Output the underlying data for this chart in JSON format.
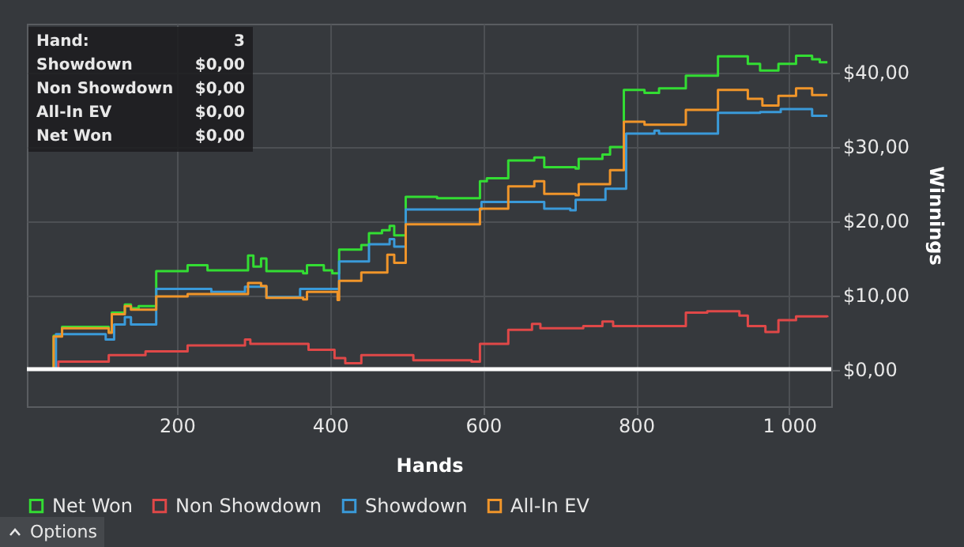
{
  "chart_data": {
    "type": "step",
    "xlabel": "Hands",
    "ylabel": "Winnings",
    "xlim": [
      4,
      1055
    ],
    "ylim": [
      -5,
      46.5
    ],
    "xticks": [
      200,
      400,
      600,
      800,
      {
        "value": 1000,
        "label": "1 000"
      }
    ],
    "yticks": [
      {
        "value": 0,
        "label": "$0,00"
      },
      {
        "value": 10,
        "label": "$10,00"
      },
      {
        "value": 20,
        "label": "$20,00"
      },
      {
        "value": 30,
        "label": "$30,00"
      },
      {
        "value": 40,
        "label": "$40,00"
      }
    ],
    "grid": true,
    "legend": "bottom",
    "line_style": "solid",
    "marker": "none",
    "ref_lines": [
      {
        "axis": "y",
        "value": 0,
        "color": "#ffffff"
      }
    ],
    "annotations": [
      "Hand:",
      "3",
      "Showdown",
      "$0,00",
      "Non Showdown",
      "$0,00",
      "All-In EV",
      "$0,00",
      "Net Won",
      "$0,00",
      "Options"
    ],
    "series": [
      {
        "name": "Net Won",
        "color": "#33dd33",
        "x": [
          10,
          39,
          50,
          111,
          115,
          132,
          140,
          150,
          173,
          214,
          240,
          293,
          300,
          310,
          317,
          365,
          370,
          392,
          403,
          412,
          441,
          451,
          468,
          478,
          484,
          499,
          540,
          596,
          605,
          633,
          667,
          680,
          721,
          725,
          756,
          766,
          784,
          811,
          830,
          865,
          907,
          946,
          962,
          986,
          1009,
          1030,
          1040,
          1050
        ],
        "values": [
          0,
          4.5,
          5.7,
          5.0,
          7.6,
          8.7,
          8.2,
          8.5,
          13.2,
          14.0,
          13.3,
          15.3,
          13.8,
          14.9,
          13.2,
          12.9,
          14.0,
          13.3,
          12.9,
          16.1,
          16.7,
          18.3,
          18.7,
          19.3,
          18.0,
          23.2,
          23.0,
          25.3,
          25.7,
          28.1,
          28.5,
          27.2,
          27.0,
          28.3,
          28.9,
          29.9,
          37.6,
          37.2,
          37.8,
          39.5,
          42.1,
          41.1,
          40.2,
          41.1,
          42.2,
          41.7,
          41.3,
          41.3
        ]
      },
      {
        "name": "Non Showdown",
        "color": "#e04848",
        "x": [
          10,
          45,
          111,
          159,
          214,
          289,
          296,
          372,
          406,
          420,
          441,
          509,
          585,
          596,
          633,
          664,
          675,
          731,
          756,
          770,
          852,
          865,
          893,
          935,
          946,
          969,
          986,
          1009,
          1050
        ],
        "values": [
          0,
          1.0,
          1.9,
          2.4,
          3.2,
          4.0,
          3.4,
          2.6,
          1.5,
          0.8,
          1.9,
          1.2,
          1.0,
          3.4,
          5.3,
          6.1,
          5.5,
          5.8,
          6.4,
          5.8,
          5.8,
          7.6,
          7.8,
          7.2,
          5.8,
          5.0,
          6.6,
          7.1,
          7.0
        ]
      },
      {
        "name": "Showdown",
        "color": "#3a9ad9",
        "x": [
          10,
          42,
          107,
          118,
          132,
          140,
          173,
          245,
          289,
          317,
          361,
          412,
          451,
          478,
          484,
          499,
          598,
          680,
          714,
          721,
          725,
          760,
          787,
          824,
          830,
          907,
          962,
          989,
          1030,
          1050
        ],
        "values": [
          0,
          4.7,
          4.0,
          6.0,
          7.0,
          6.0,
          10.8,
          10.4,
          11.1,
          9.7,
          10.8,
          14.5,
          16.8,
          17.5,
          16.5,
          21.5,
          22.5,
          21.6,
          21.4,
          22.8,
          22.8,
          24.3,
          31.7,
          32.1,
          31.7,
          34.5,
          34.6,
          35.0,
          34.1,
          34.1
        ]
      },
      {
        "name": "All-In EV",
        "color": "#f0952a",
        "x": [
          10,
          39,
          50,
          111,
          115,
          132,
          140,
          173,
          214,
          293,
          310,
          317,
          365,
          370,
          410,
          412,
          441,
          475,
          484,
          499,
          596,
          633,
          667,
          680,
          721,
          725,
          766,
          784,
          811,
          865,
          907,
          946,
          965,
          986,
          1009,
          1030,
          1050
        ],
        "values": [
          0,
          4.4,
          5.5,
          4.9,
          7.4,
          8.5,
          8.0,
          9.8,
          10.1,
          11.6,
          11.2,
          9.6,
          9.4,
          10.4,
          9.3,
          11.9,
          13.0,
          15.4,
          14.3,
          19.5,
          21.6,
          24.6,
          25.3,
          23.6,
          23.4,
          24.9,
          26.8,
          33.3,
          32.9,
          34.9,
          37.6,
          36.4,
          35.5,
          36.8,
          37.8,
          36.9,
          36.9
        ]
      }
    ]
  }
}
